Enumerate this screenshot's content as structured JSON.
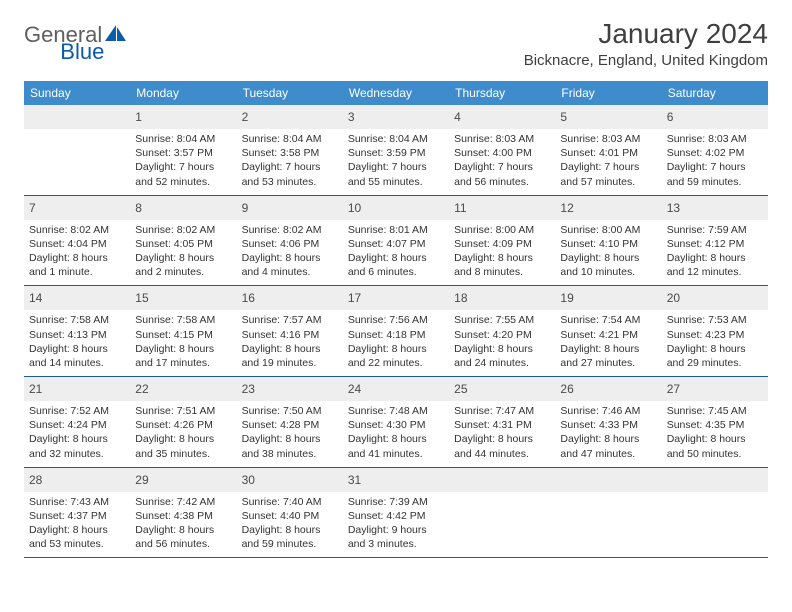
{
  "logo": {
    "part1": "General",
    "part2": "Blue"
  },
  "header": {
    "month": "January 2024",
    "location": "Bicknacre, England, United Kingdom"
  },
  "colors": {
    "dow_bg": "#3e8ccc",
    "dow_text": "#ffffff",
    "daynum_bg": "#eeeeee",
    "week_border": "#1f5c94",
    "logo_gray": "#5f5f5f",
    "logo_blue": "#0a5ca8",
    "title_color": "#3f3f3f"
  },
  "dow": [
    "Sunday",
    "Monday",
    "Tuesday",
    "Wednesday",
    "Thursday",
    "Friday",
    "Saturday"
  ],
  "weeks": [
    [
      null,
      {
        "n": "1",
        "sr": "Sunrise: 8:04 AM",
        "ss": "Sunset: 3:57 PM",
        "dl": "Daylight: 7 hours and 52 minutes."
      },
      {
        "n": "2",
        "sr": "Sunrise: 8:04 AM",
        "ss": "Sunset: 3:58 PM",
        "dl": "Daylight: 7 hours and 53 minutes."
      },
      {
        "n": "3",
        "sr": "Sunrise: 8:04 AM",
        "ss": "Sunset: 3:59 PM",
        "dl": "Daylight: 7 hours and 55 minutes."
      },
      {
        "n": "4",
        "sr": "Sunrise: 8:03 AM",
        "ss": "Sunset: 4:00 PM",
        "dl": "Daylight: 7 hours and 56 minutes."
      },
      {
        "n": "5",
        "sr": "Sunrise: 8:03 AM",
        "ss": "Sunset: 4:01 PM",
        "dl": "Daylight: 7 hours and 57 minutes."
      },
      {
        "n": "6",
        "sr": "Sunrise: 8:03 AM",
        "ss": "Sunset: 4:02 PM",
        "dl": "Daylight: 7 hours and 59 minutes."
      }
    ],
    [
      {
        "n": "7",
        "sr": "Sunrise: 8:02 AM",
        "ss": "Sunset: 4:04 PM",
        "dl": "Daylight: 8 hours and 1 minute."
      },
      {
        "n": "8",
        "sr": "Sunrise: 8:02 AM",
        "ss": "Sunset: 4:05 PM",
        "dl": "Daylight: 8 hours and 2 minutes."
      },
      {
        "n": "9",
        "sr": "Sunrise: 8:02 AM",
        "ss": "Sunset: 4:06 PM",
        "dl": "Daylight: 8 hours and 4 minutes."
      },
      {
        "n": "10",
        "sr": "Sunrise: 8:01 AM",
        "ss": "Sunset: 4:07 PM",
        "dl": "Daylight: 8 hours and 6 minutes."
      },
      {
        "n": "11",
        "sr": "Sunrise: 8:00 AM",
        "ss": "Sunset: 4:09 PM",
        "dl": "Daylight: 8 hours and 8 minutes."
      },
      {
        "n": "12",
        "sr": "Sunrise: 8:00 AM",
        "ss": "Sunset: 4:10 PM",
        "dl": "Daylight: 8 hours and 10 minutes."
      },
      {
        "n": "13",
        "sr": "Sunrise: 7:59 AM",
        "ss": "Sunset: 4:12 PM",
        "dl": "Daylight: 8 hours and 12 minutes."
      }
    ],
    [
      {
        "n": "14",
        "sr": "Sunrise: 7:58 AM",
        "ss": "Sunset: 4:13 PM",
        "dl": "Daylight: 8 hours and 14 minutes."
      },
      {
        "n": "15",
        "sr": "Sunrise: 7:58 AM",
        "ss": "Sunset: 4:15 PM",
        "dl": "Daylight: 8 hours and 17 minutes."
      },
      {
        "n": "16",
        "sr": "Sunrise: 7:57 AM",
        "ss": "Sunset: 4:16 PM",
        "dl": "Daylight: 8 hours and 19 minutes."
      },
      {
        "n": "17",
        "sr": "Sunrise: 7:56 AM",
        "ss": "Sunset: 4:18 PM",
        "dl": "Daylight: 8 hours and 22 minutes."
      },
      {
        "n": "18",
        "sr": "Sunrise: 7:55 AM",
        "ss": "Sunset: 4:20 PM",
        "dl": "Daylight: 8 hours and 24 minutes."
      },
      {
        "n": "19",
        "sr": "Sunrise: 7:54 AM",
        "ss": "Sunset: 4:21 PM",
        "dl": "Daylight: 8 hours and 27 minutes."
      },
      {
        "n": "20",
        "sr": "Sunrise: 7:53 AM",
        "ss": "Sunset: 4:23 PM",
        "dl": "Daylight: 8 hours and 29 minutes."
      }
    ],
    [
      {
        "n": "21",
        "sr": "Sunrise: 7:52 AM",
        "ss": "Sunset: 4:24 PM",
        "dl": "Daylight: 8 hours and 32 minutes."
      },
      {
        "n": "22",
        "sr": "Sunrise: 7:51 AM",
        "ss": "Sunset: 4:26 PM",
        "dl": "Daylight: 8 hours and 35 minutes."
      },
      {
        "n": "23",
        "sr": "Sunrise: 7:50 AM",
        "ss": "Sunset: 4:28 PM",
        "dl": "Daylight: 8 hours and 38 minutes."
      },
      {
        "n": "24",
        "sr": "Sunrise: 7:48 AM",
        "ss": "Sunset: 4:30 PM",
        "dl": "Daylight: 8 hours and 41 minutes."
      },
      {
        "n": "25",
        "sr": "Sunrise: 7:47 AM",
        "ss": "Sunset: 4:31 PM",
        "dl": "Daylight: 8 hours and 44 minutes."
      },
      {
        "n": "26",
        "sr": "Sunrise: 7:46 AM",
        "ss": "Sunset: 4:33 PM",
        "dl": "Daylight: 8 hours and 47 minutes."
      },
      {
        "n": "27",
        "sr": "Sunrise: 7:45 AM",
        "ss": "Sunset: 4:35 PM",
        "dl": "Daylight: 8 hours and 50 minutes."
      }
    ],
    [
      {
        "n": "28",
        "sr": "Sunrise: 7:43 AM",
        "ss": "Sunset: 4:37 PM",
        "dl": "Daylight: 8 hours and 53 minutes."
      },
      {
        "n": "29",
        "sr": "Sunrise: 7:42 AM",
        "ss": "Sunset: 4:38 PM",
        "dl": "Daylight: 8 hours and 56 minutes."
      },
      {
        "n": "30",
        "sr": "Sunrise: 7:40 AM",
        "ss": "Sunset: 4:40 PM",
        "dl": "Daylight: 8 hours and 59 minutes."
      },
      {
        "n": "31",
        "sr": "Sunrise: 7:39 AM",
        "ss": "Sunset: 4:42 PM",
        "dl": "Daylight: 9 hours and 3 minutes."
      },
      null,
      null,
      null
    ]
  ]
}
